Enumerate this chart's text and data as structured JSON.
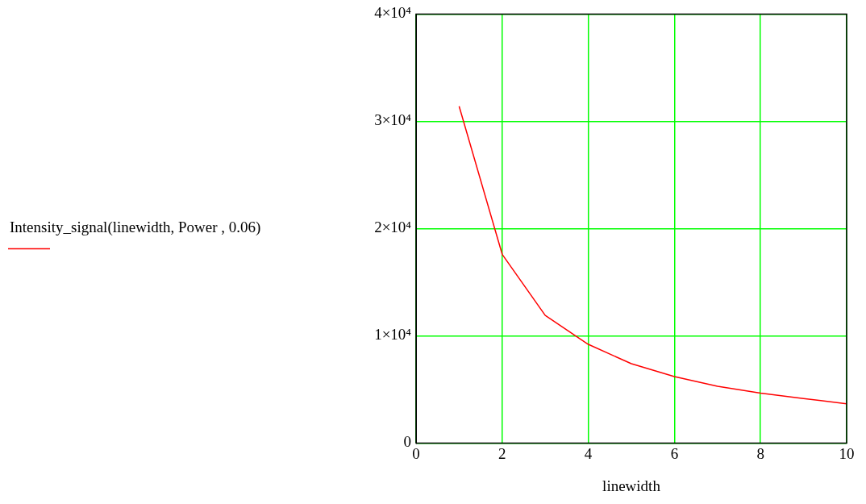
{
  "chart_data": {
    "type": "line",
    "xlabel": "linewidth",
    "x": [
      1,
      2,
      3,
      4,
      5,
      6,
      7,
      8,
      9,
      10
    ],
    "series": [
      {
        "name": "Intensity_signal(linewidth, Power , 0.06)",
        "color": "#ff0000",
        "values": [
          31400,
          17600,
          11900,
          9200,
          7400,
          6200,
          5300,
          4650,
          4150,
          3660
        ]
      }
    ],
    "xlim": [
      0,
      10
    ],
    "xticks": [
      0,
      2,
      4,
      6,
      8,
      10
    ],
    "ylim": [
      0,
      40000
    ],
    "yticks": [
      0,
      {
        "value": 10000,
        "label": "1×10⁴"
      },
      {
        "value": 20000,
        "label": "2×10⁴"
      },
      {
        "value": 30000,
        "label": "3×10⁴"
      },
      {
        "value": 40000,
        "label": "4×10⁴"
      }
    ],
    "grid": true,
    "legend": "left",
    "marker": "none",
    "line_style": "solid"
  }
}
